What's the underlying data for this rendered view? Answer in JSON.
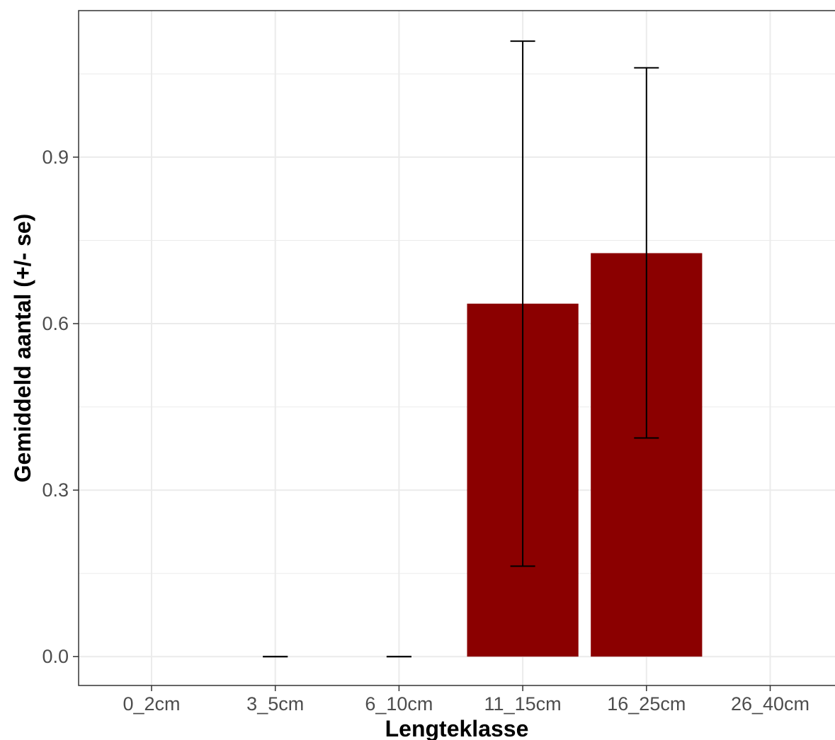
{
  "chart_data": {
    "type": "bar",
    "categories": [
      "0_2cm",
      "3_5cm",
      "6_10cm",
      "11_15cm",
      "16_25cm",
      "26_40cm"
    ],
    "values": [
      null,
      0,
      0,
      0.636,
      0.727,
      null
    ],
    "error_bars": [
      null,
      {
        "lower": 0,
        "upper": 0
      },
      {
        "lower": 0,
        "upper": 0
      },
      {
        "lower": 0.163,
        "upper": 1.109
      },
      {
        "lower": 0.394,
        "upper": 1.061
      },
      null
    ],
    "title": "",
    "xlabel": "Lengteklasse",
    "ylabel": "Gemiddeld aantal (+/- se)",
    "ylim": [
      -0.052,
      1.164
    ],
    "yticks": [
      0.0,
      0.3,
      0.6,
      0.9
    ],
    "ytick_labels": [
      "0.0",
      "0.3",
      "0.6",
      "0.9"
    ],
    "grid": true,
    "bar_color": "#8b0000",
    "errorbar_color": "#000000",
    "grid_color": "#ebebeb",
    "panel_border_color": "#333333",
    "tick_label_color": "#4d4d4d"
  }
}
